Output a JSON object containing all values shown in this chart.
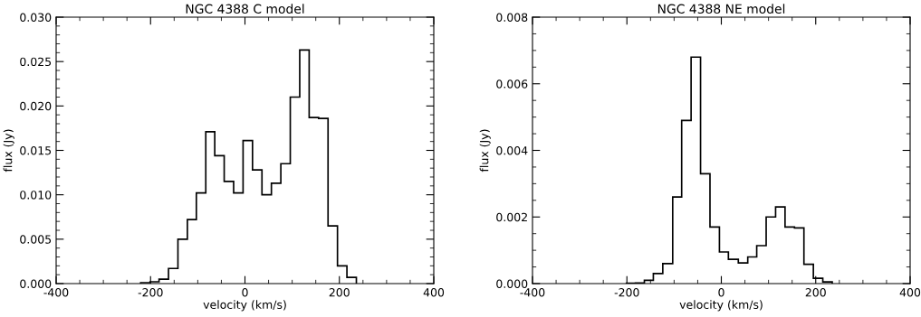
{
  "chart_data": [
    {
      "type": "histogram",
      "title": "NGC 4388 C model",
      "xlabel": "velocity (km/s)",
      "ylabel": "flux (Jy)",
      "bins": [
        -221,
        -201,
        -182,
        -162,
        -142,
        -122,
        -103,
        -83,
        -64,
        -44,
        -24,
        -4,
        16,
        36,
        56,
        76,
        96,
        116,
        136,
        156,
        176,
        196,
        216,
        236
      ],
      "values": [
        0.0001,
        0.0002,
        0.0005,
        0.0017,
        0.005,
        0.0072,
        0.0102,
        0.0171,
        0.0144,
        0.0115,
        0.0102,
        0.0161,
        0.0128,
        0.01,
        0.0113,
        0.0135,
        0.021,
        0.0263,
        0.0187,
        0.0186,
        0.0065,
        0.002,
        0.0007
      ],
      "color": "#000000",
      "xlim": [
        -400,
        400
      ],
      "xticks": [
        -400,
        -200,
        0,
        200,
        400
      ],
      "ylim": [
        0,
        0.03
      ],
      "yticks": [
        {
          "value": 0,
          "label": "0.000"
        },
        {
          "value": 0.005,
          "label": "0.005"
        },
        {
          "value": 0.01,
          "label": "0.010"
        },
        {
          "value": 0.015,
          "label": "0.015"
        },
        {
          "value": 0.02,
          "label": "0.020"
        },
        {
          "value": 0.025,
          "label": "0.025"
        },
        {
          "value": 0.03,
          "label": "0.030"
        }
      ],
      "grid": false,
      "legend": false
    },
    {
      "type": "histogram",
      "title": "NGC 4388 NE model",
      "xlabel": "velocity (km/s)",
      "ylabel": "flux (Jy)",
      "bins": [
        -201,
        -182,
        -163,
        -144,
        -124,
        -103,
        -84,
        -64,
        -44,
        -24,
        -4,
        15,
        36,
        56,
        75,
        95,
        115,
        135,
        155,
        175,
        195,
        215,
        235
      ],
      "values": [
        1e-05,
        2e-05,
        0.0001,
        0.0003,
        0.0006,
        0.0026,
        0.0049,
        0.0068,
        0.0033,
        0.0017,
        0.00095,
        0.00073,
        0.00062,
        0.0008,
        0.00114,
        0.002,
        0.0023,
        0.0017,
        0.00167,
        0.00058,
        0.00016,
        5e-05
      ],
      "color": "#000000",
      "xlim": [
        -400,
        400
      ],
      "xticks": [
        -400,
        -200,
        0,
        200,
        400
      ],
      "ylim": [
        0,
        0.008
      ],
      "yticks": [
        {
          "value": 0,
          "label": "0.000"
        },
        {
          "value": 0.002,
          "label": "0.002"
        },
        {
          "value": 0.004,
          "label": "0.004"
        },
        {
          "value": 0.006,
          "label": "0.006"
        },
        {
          "value": 0.008,
          "label": "0.008"
        }
      ],
      "grid": false,
      "legend": false
    }
  ]
}
